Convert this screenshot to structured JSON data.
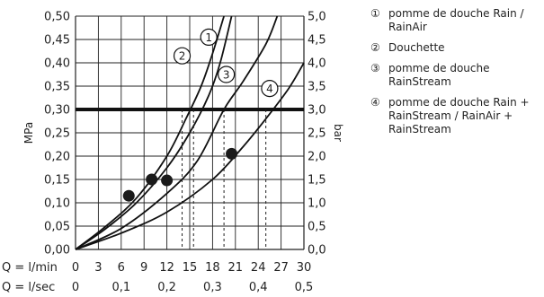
{
  "chart_data": {
    "type": "line",
    "ylabel_left": "MPa",
    "ylabel_right": "bar",
    "ylim": [
      0,
      0.5
    ],
    "left_ticks": [
      "0,50",
      "0,45",
      "0,40",
      "0,35",
      "0,30",
      "0,25",
      "0,20",
      "0,15",
      "0,10",
      "0,05",
      "0,00"
    ],
    "right_ticks": [
      "5,0",
      "4,5",
      "4,0",
      "3,5",
      "3,0",
      "2,5",
      "2,0",
      "1,5",
      "1,0",
      "0,5",
      "0,0"
    ],
    "xlim": [
      0,
      30
    ],
    "x_row1": {
      "label": "Q = l/min",
      "ticks": [
        "0",
        "3",
        "6",
        "9",
        "12",
        "15",
        "18",
        "21",
        "24",
        "27",
        "30"
      ]
    },
    "x_row2": {
      "label": "Q = l/sec",
      "ticks": [
        "0",
        "0,1",
        "0,2",
        "0,3",
        "0,4",
        "0,5"
      ]
    },
    "reference_line": {
      "y": 0.3
    },
    "series": [
      {
        "id": "1",
        "label": "①",
        "x": [
          0,
          4,
          8,
          12,
          15,
          17.5,
          19,
          20.5
        ],
        "y": [
          0,
          0.045,
          0.1,
          0.175,
          0.25,
          0.33,
          0.4,
          0.5
        ]
      },
      {
        "id": "2",
        "label": "②",
        "x": [
          0,
          4,
          8,
          12,
          14.5,
          16.5,
          18,
          19.5
        ],
        "y": [
          0,
          0.05,
          0.11,
          0.2,
          0.28,
          0.35,
          0.42,
          0.5
        ]
      },
      {
        "id": "3",
        "label": "③",
        "x": [
          0,
          6,
          12,
          16,
          19.5,
          22,
          25,
          26.5
        ],
        "y": [
          0,
          0.045,
          0.12,
          0.19,
          0.3,
          0.36,
          0.44,
          0.5
        ]
      },
      {
        "id": "4",
        "label": "④",
        "x": [
          0,
          6,
          12,
          18,
          22,
          25,
          28,
          30
        ],
        "y": [
          0,
          0.035,
          0.08,
          0.15,
          0.22,
          0.28,
          0.345,
          0.4
        ]
      }
    ],
    "dashed_x": [
      14,
      15.5,
      19.5,
      25
    ],
    "points": [
      {
        "x": 7,
        "y": 0.115
      },
      {
        "x": 10,
        "y": 0.15
      },
      {
        "x": 12,
        "y": 0.148
      },
      {
        "x": 20.5,
        "y": 0.205
      }
    ]
  },
  "legend": [
    {
      "num": "①",
      "text": "pomme de douche Rain / RainAir"
    },
    {
      "num": "②",
      "text": "Douchette"
    },
    {
      "num": "③",
      "text": "pomme de douche RainStream"
    },
    {
      "num": "④",
      "text": "pomme de douche Rain + RainStream / RainAir + RainStream"
    }
  ]
}
